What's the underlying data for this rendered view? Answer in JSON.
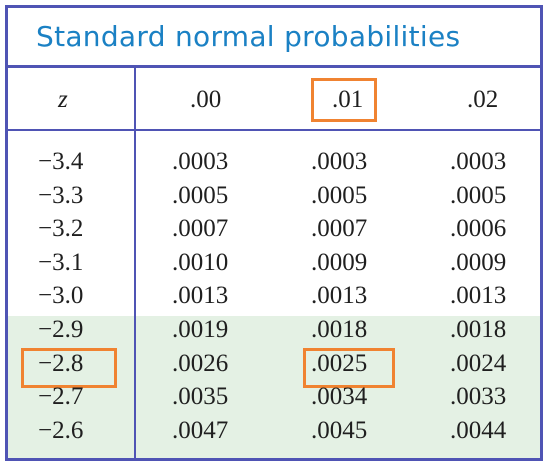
{
  "title": "Standard normal probabilities",
  "columns": [
    ".00",
    ".01",
    ".02"
  ],
  "z_header": "z",
  "rows": [
    {
      "z": "−3.4",
      "values": [
        ".0003",
        ".0003",
        ".0003"
      ]
    },
    {
      "z": "−3.3",
      "values": [
        ".0005",
        ".0005",
        ".0005"
      ]
    },
    {
      "z": "−3.2",
      "values": [
        ".0007",
        ".0007",
        ".0006"
      ]
    },
    {
      "z": "−3.1",
      "values": [
        ".0010",
        ".0009",
        ".0009"
      ]
    },
    {
      "z": "−3.0",
      "values": [
        ".0013",
        ".0013",
        ".0013"
      ]
    },
    {
      "z": "−2.9",
      "values": [
        ".0019",
        ".0018",
        ".0018"
      ]
    },
    {
      "z": "−2.8",
      "values": [
        ".0026",
        ".0025",
        ".0024"
      ]
    },
    {
      "z": "−2.7",
      "values": [
        ".0035",
        ".0034",
        ".0033"
      ]
    },
    {
      "z": "−2.6",
      "values": [
        ".0047",
        ".0045",
        ".0044"
      ]
    }
  ],
  "colors": {
    "border": "#4f54b4",
    "title": "#1b81c4",
    "highlight_box": "#f08331",
    "shaded_rows": "#e4f1e4"
  }
}
